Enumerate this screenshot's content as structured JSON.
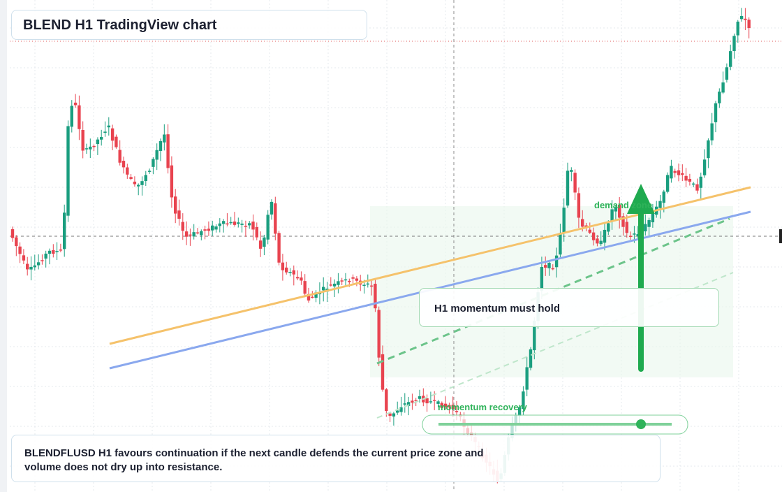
{
  "header": {
    "title": "BLEND H1 TradingView chart"
  },
  "annotations": {
    "zone_label": "demand zone",
    "callout": "H1 momentum must hold",
    "recovery_label": "momentum recovery"
  },
  "note": {
    "text": "BLENDFLUSD H1 favours continuation if the next candle defends the current price zone and volume does not dry up into resistance."
  }
}
